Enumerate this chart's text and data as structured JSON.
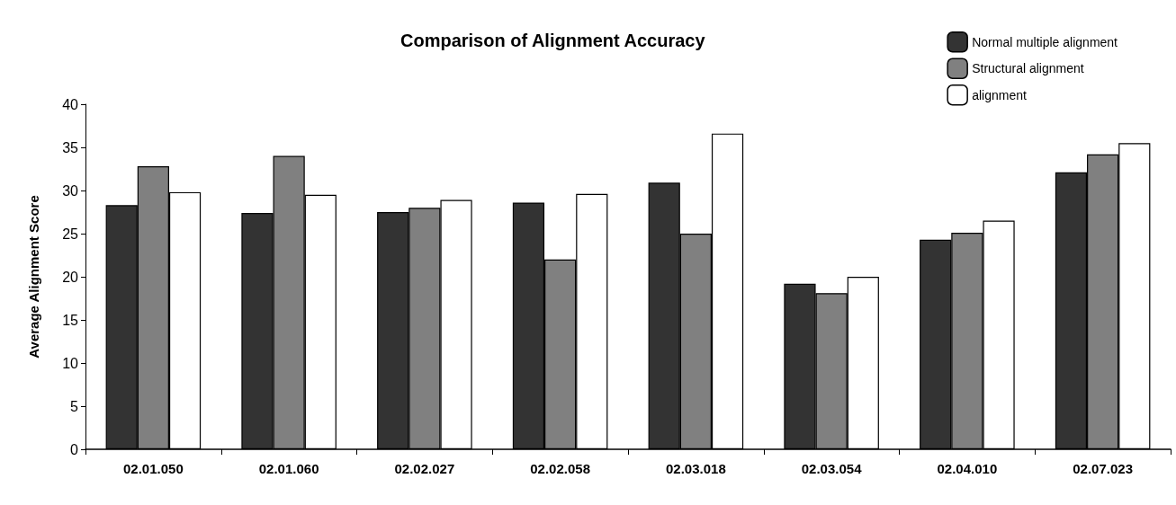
{
  "chart_data": {
    "type": "bar",
    "title": "Comparison of Alignment Accuracy",
    "ylabel": "Average Alignment Score",
    "categories": [
      "02.01.050",
      "02.01.060",
      "02.02.027",
      "02.02.058",
      "02.03.018",
      "02.03.054",
      "02.04.010",
      "02.07.023"
    ],
    "series": [
      {
        "name": "Normal multiple alignment",
        "color": "#333333",
        "values": [
          28.3,
          27.4,
          27.5,
          28.6,
          30.9,
          19.2,
          24.3,
          32.1
        ]
      },
      {
        "name": "Structural alignment",
        "color": "#808080",
        "values": [
          32.8,
          34.0,
          28.0,
          22.0,
          25.0,
          18.1,
          25.1,
          34.2
        ]
      },
      {
        "name": "alignment",
        "color": "#ffffff",
        "values": [
          29.8,
          29.5,
          28.9,
          29.6,
          36.6,
          20.0,
          26.5,
          35.5
        ]
      }
    ],
    "ylim": [
      0,
      40
    ],
    "yticks": [
      0,
      5,
      10,
      15,
      20,
      25,
      30,
      35,
      40
    ],
    "grid": false,
    "legend": "top right"
  }
}
